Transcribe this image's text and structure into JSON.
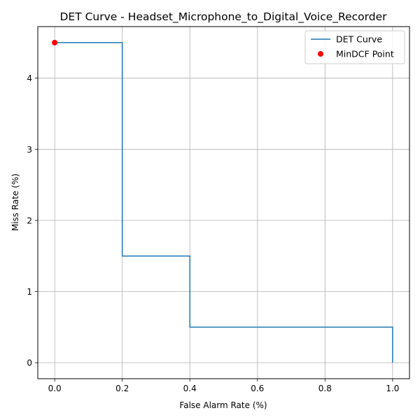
{
  "chart_data": {
    "type": "line",
    "title": "DET Curve - Headset_Microphone_to_Digital_Voice_Recorder",
    "xlabel": "False Alarm Rate (%)",
    "ylabel": "Miss Rate (%)",
    "xlim": [
      -0.05,
      1.05
    ],
    "ylim": [
      -0.225,
      4.725
    ],
    "x_ticks": [
      0.0,
      0.2,
      0.4,
      0.6,
      0.8,
      1.0
    ],
    "x_tick_labels": [
      "0.0",
      "0.2",
      "0.4",
      "0.6",
      "0.8",
      "1.0"
    ],
    "y_ticks": [
      0,
      1,
      2,
      3,
      4
    ],
    "y_tick_labels": [
      "0",
      "1",
      "2",
      "3",
      "4"
    ],
    "grid": true,
    "legend_position": "top-right",
    "series": [
      {
        "name": "DET Curve",
        "kind": "line",
        "color": "#1f77b4",
        "x": [
          0.0,
          0.2,
          0.2,
          0.4,
          0.4,
          1.0,
          1.0
        ],
        "y": [
          4.5,
          4.5,
          1.5,
          1.5,
          0.5,
          0.5,
          0.0
        ]
      },
      {
        "name": "MinDCF Point",
        "kind": "scatter",
        "color": "#ff0000",
        "x": [
          0.0
        ],
        "y": [
          4.5
        ]
      }
    ]
  }
}
